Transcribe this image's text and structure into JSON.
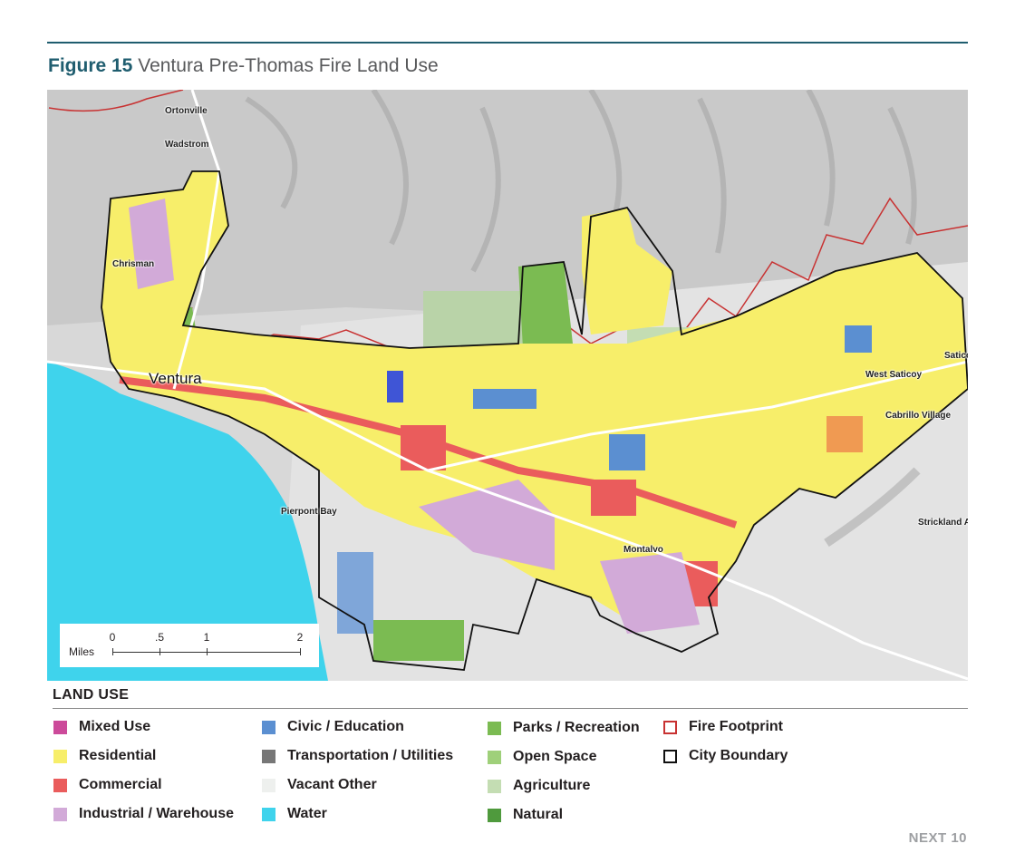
{
  "figure": {
    "number": "Figure 15",
    "title": "Ventura Pre-Thomas Fire Land Use"
  },
  "map": {
    "places": {
      "ortonville": "Ortonville",
      "wadstrom": "Wadstrom",
      "chrisman": "Chrisman",
      "ventura": "Ventura",
      "pierpont_bay": "Pierpont Bay",
      "west_saticoy": "West Saticoy",
      "saticoy": "Saticoy",
      "cabrillo_village": "Cabrillo Village",
      "strickland": "Strickland A",
      "montalvo": "Montalvo"
    },
    "scale": {
      "unit": "Miles",
      "ticks": [
        "0",
        ".5",
        "1",
        "2"
      ]
    }
  },
  "legend": {
    "title": "LAND USE",
    "items": {
      "mixed_use": {
        "label": "Mixed Use",
        "color": "#cc4a9a"
      },
      "residential": {
        "label": "Residential",
        "color": "#f7ee6a"
      },
      "commercial": {
        "label": "Commercial",
        "color": "#ea5c5c"
      },
      "industrial": {
        "label": "Industrial / Warehouse",
        "color": "#d2aad8"
      },
      "civic": {
        "label": "Civic / Education",
        "color": "#5b8fd1"
      },
      "transportation": {
        "label": "Transportation / Utilities",
        "color": "#777777"
      },
      "vacant": {
        "label": "Vacant Other",
        "color": "#eef0ee"
      },
      "water": {
        "label": "Water",
        "color": "#3fd3ec"
      },
      "parks": {
        "label": "Parks / Recreation",
        "color": "#7bbb52"
      },
      "open_space": {
        "label": "Open Space",
        "color": "#9fd07a"
      },
      "agriculture": {
        "label": "Agriculture",
        "color": "#c4ddb3"
      },
      "natural": {
        "label": "Natural",
        "color": "#4f9a3d"
      },
      "fire_footprint": {
        "label": "Fire Footprint",
        "color": "#c83232"
      },
      "city_boundary": {
        "label": "City Boundary",
        "color": "#111111"
      }
    }
  },
  "footer": {
    "text": "NEXT 10"
  }
}
